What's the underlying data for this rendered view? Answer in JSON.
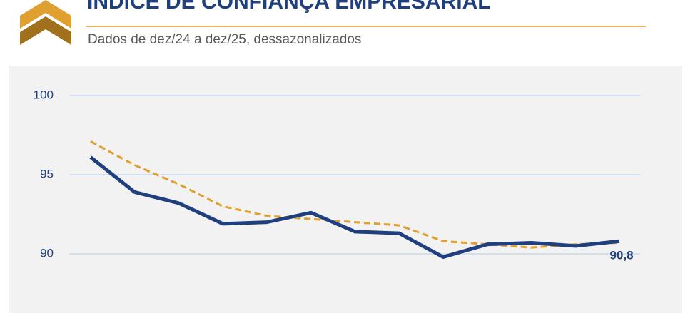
{
  "chart_data": {
    "type": "line",
    "title": "ÍNDICE DE CONFIANÇA EMPRESARIAL",
    "subtitle": "Dados de dez/24 a dez/25, dessazonalizados",
    "categories": [
      null,
      null,
      null,
      null,
      null,
      null,
      null,
      null,
      null,
      null,
      null,
      null,
      null
    ],
    "series": [
      {
        "color": "#1f3f7f",
        "dashed": false,
        "values": [
          96.1,
          93.9,
          93.2,
          91.9,
          92.0,
          92.6,
          91.4,
          91.3,
          89.8,
          90.6,
          90.7,
          90.5,
          90.8
        ],
        "value_labels": [
          null,
          null,
          null,
          null,
          null,
          null,
          null,
          null,
          null,
          null,
          null,
          null,
          "90,8"
        ]
      },
      {
        "color": "#e0a030",
        "dashed": true,
        "values": [
          97.1,
          95.6,
          94.4,
          93.0,
          92.4,
          92.2,
          92.0,
          91.8,
          90.8,
          90.6,
          90.4,
          90.6,
          90.7
        ]
      }
    ],
    "ylim": [
      86,
      100
    ],
    "yticks": [
      90,
      95,
      100
    ],
    "grid": true
  }
}
